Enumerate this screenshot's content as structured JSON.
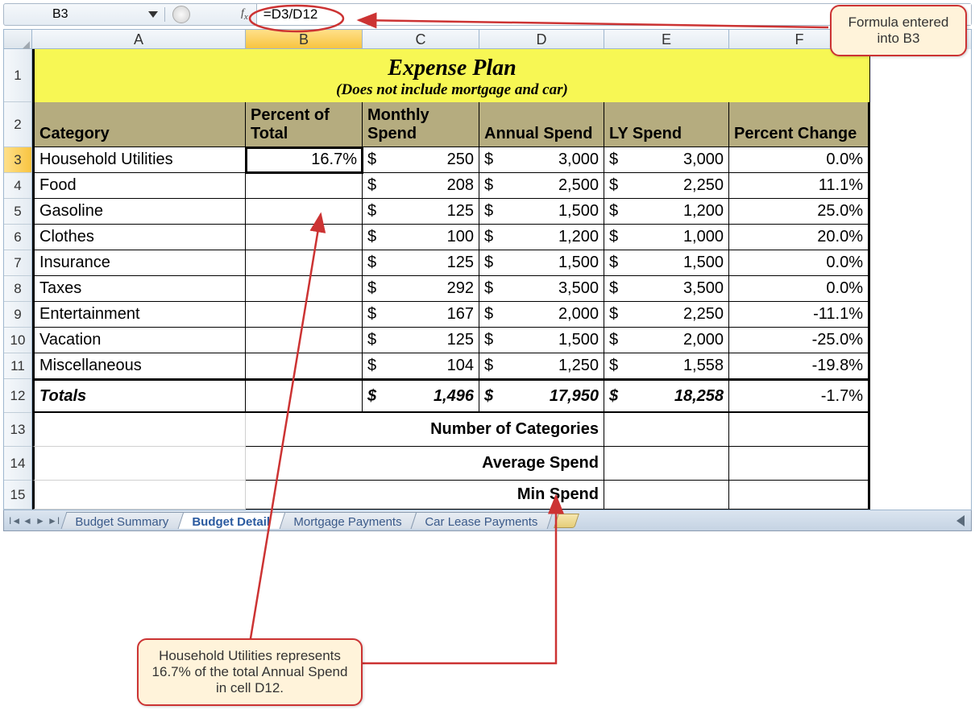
{
  "formula_bar": {
    "name_box": "B3",
    "fx_label": "fx",
    "formula": "=D3/D12"
  },
  "columns": {
    "letters": [
      "A",
      "B",
      "C",
      "D",
      "E",
      "F"
    ],
    "widths": [
      265,
      145,
      145,
      155,
      155,
      175
    ],
    "active": "B"
  },
  "title": {
    "main": "Expense Plan",
    "sub": "(Does not include mortgage and car)"
  },
  "headers": {
    "A": "Category",
    "B": "Percent of Total",
    "C": "Monthly Spend",
    "D": "Annual Spend",
    "E": "LY Spend",
    "F": "Percent Change"
  },
  "rows": [
    {
      "num": 3,
      "category": "Household Utilities",
      "percent": "16.7%",
      "monthly": "250",
      "annual": "3,000",
      "ly": "3,000",
      "change": "0.0%"
    },
    {
      "num": 4,
      "category": "Food",
      "percent": "",
      "monthly": "208",
      "annual": "2,500",
      "ly": "2,250",
      "change": "11.1%"
    },
    {
      "num": 5,
      "category": "Gasoline",
      "percent": "",
      "monthly": "125",
      "annual": "1,500",
      "ly": "1,200",
      "change": "25.0%"
    },
    {
      "num": 6,
      "category": "Clothes",
      "percent": "",
      "monthly": "100",
      "annual": "1,200",
      "ly": "1,000",
      "change": "20.0%"
    },
    {
      "num": 7,
      "category": "Insurance",
      "percent": "",
      "monthly": "125",
      "annual": "1,500",
      "ly": "1,500",
      "change": "0.0%"
    },
    {
      "num": 8,
      "category": "Taxes",
      "percent": "",
      "monthly": "292",
      "annual": "3,500",
      "ly": "3,500",
      "change": "0.0%"
    },
    {
      "num": 9,
      "category": "Entertainment",
      "percent": "",
      "monthly": "167",
      "annual": "2,000",
      "ly": "2,250",
      "change": "-11.1%"
    },
    {
      "num": 10,
      "category": "Vacation",
      "percent": "",
      "monthly": "125",
      "annual": "1,500",
      "ly": "2,000",
      "change": "-25.0%"
    },
    {
      "num": 11,
      "category": "Miscellaneous",
      "percent": "",
      "monthly": "104",
      "annual": "1,250",
      "ly": "1,558",
      "change": "-19.8%"
    }
  ],
  "totals": {
    "num": 12,
    "label": "Totals",
    "monthly": "1,496",
    "annual": "17,950",
    "ly": "18,258",
    "change": "-1.7%"
  },
  "summary_labels": [
    {
      "num": 13,
      "text": "Number of Categories"
    },
    {
      "num": 14,
      "text": "Average Spend"
    },
    {
      "num": 15,
      "text": "Min Spend"
    }
  ],
  "row_heights": {
    "1": 66,
    "2": 56,
    "3": 32,
    "4": 32,
    "5": 32,
    "6": 32,
    "7": 32,
    "8": 32,
    "9": 32,
    "10": 32,
    "11": 32,
    "12": 42,
    "13": 42,
    "14": 42,
    "15": 36
  },
  "active_row": 3,
  "tabs": [
    "Budget Summary",
    "Budget Detail",
    "Mortgage Payments",
    "Car Lease Payments"
  ],
  "active_tab": "Budget Detail",
  "callouts": {
    "top": "Formula entered into B3",
    "bottom": "Household Utilities represents 16.7% of the total Annual Spend in cell D12."
  },
  "currency_symbol": "$",
  "colors": {
    "title_bg": "#f7f754",
    "header_bg": "#b5ac7f",
    "annotation": "#c33",
    "callout_bg": "#fff3da"
  }
}
